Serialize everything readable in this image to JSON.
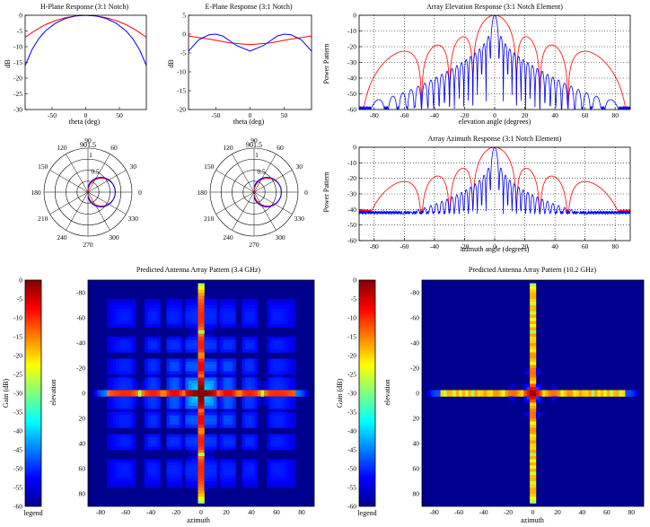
{
  "chart_data": [
    {
      "id": "hplane",
      "type": "line",
      "title": "H-Plane Response (3:1 Notch)",
      "xlabel": "theta (deg)",
      "ylabel": "dB",
      "xlim": [
        -90,
        90
      ],
      "ylim": [
        -30,
        0
      ],
      "xticks": [
        -50,
        0,
        50
      ],
      "yticks": [
        0,
        -5,
        -10,
        -15,
        -20,
        -25,
        -30
      ],
      "grid": false,
      "series": [
        {
          "color": "#ff0000",
          "x": [
            -90,
            -75,
            -60,
            -45,
            -30,
            -15,
            0,
            15,
            30,
            45,
            60,
            75,
            90
          ],
          "y": [
            -7,
            -4.8,
            -3,
            -1.7,
            -0.8,
            -0.2,
            0,
            -0.2,
            -0.8,
            -1.7,
            -3,
            -4.8,
            -7
          ]
        },
        {
          "color": "#0000ff",
          "x": [
            -90,
            -80,
            -70,
            -60,
            -45,
            -30,
            -15,
            0,
            15,
            30,
            45,
            60,
            70,
            80,
            90
          ],
          "y": [
            -16,
            -11,
            -7.5,
            -5,
            -2.5,
            -1,
            -0.2,
            0,
            -0.2,
            -1,
            -2.5,
            -5,
            -7.5,
            -11,
            -16
          ]
        }
      ]
    },
    {
      "id": "eplane",
      "type": "line",
      "title": "E-Plane Response (3:1 Notch)",
      "xlabel": "theta (deg)",
      "ylabel": "dB",
      "xlim": [
        -90,
        90
      ],
      "ylim": [
        -20,
        5
      ],
      "xticks": [
        -50,
        0,
        50
      ],
      "yticks": [
        5,
        0,
        -5,
        -10,
        -15,
        -20
      ],
      "grid": false,
      "series": [
        {
          "color": "#ff0000",
          "x": [
            -90,
            -60,
            -30,
            0,
            30,
            60,
            90
          ],
          "y": [
            -0.5,
            -1.3,
            -2.3,
            -2.8,
            -2.3,
            -1.3,
            -0.5
          ]
        },
        {
          "color": "#0000ff",
          "x": [
            -90,
            -75,
            -60,
            -50,
            -40,
            -20,
            0,
            20,
            40,
            50,
            60,
            75,
            90
          ],
          "y": [
            -4.5,
            -1.5,
            -0.2,
            0,
            -0.5,
            -3,
            -4.5,
            -3,
            -0.5,
            0,
            -0.2,
            -1.5,
            -4.5
          ]
        }
      ]
    },
    {
      "id": "elev",
      "type": "line",
      "title": "Array Elevation Response (3:1 Notch Element)",
      "xlabel": "elevation angle (degrees)",
      "ylabel": "Power Pattern",
      "xlim": [
        -90,
        90
      ],
      "ylim": [
        -60,
        0
      ],
      "xticks": [
        -80,
        -60,
        -40,
        -20,
        0,
        20,
        40,
        60,
        80
      ],
      "yticks": [
        0,
        -10,
        -20,
        -30,
        -40,
        -50,
        -60
      ],
      "grid": true,
      "series": [
        {
          "color": "#ff0000",
          "N": 8,
          "drop": -11,
          "floor": -60
        },
        {
          "color": "#0000ff",
          "N": 40,
          "drop": -38,
          "floor": -60
        }
      ]
    },
    {
      "id": "azim",
      "type": "line",
      "title": "Array Azimuth Response (3:1 Notch Element)",
      "xlabel": "azimuth angle (degrees)",
      "ylabel": "Power Pattern",
      "xlim": [
        -90,
        90
      ],
      "ylim": [
        -60,
        0
      ],
      "xticks": [
        -80,
        -60,
        -40,
        -20,
        0,
        20,
        40,
        60,
        80
      ],
      "yticks": [
        0,
        -10,
        -20,
        -30,
        -40,
        -50,
        -60
      ],
      "grid": true,
      "series": [
        {
          "color": "#ff0000",
          "N": 8,
          "drop": -9,
          "floor": -42
        },
        {
          "color": "#0000ff",
          "N": 40,
          "drop": -24,
          "floor": -43
        }
      ]
    },
    {
      "id": "heat1",
      "type": "heatmap",
      "title": "Predicted Antenna Array Pattern (3.4 GHz)",
      "xlabel": "azimuth",
      "ylabel": "elevation",
      "xlim": [
        -90,
        90
      ],
      "ylim": [
        -90,
        90
      ],
      "xticks": [
        -80,
        -60,
        -40,
        -20,
        0,
        20,
        40,
        60,
        80
      ],
      "yticks": [
        -80,
        -60,
        -40,
        -20,
        0,
        20,
        40,
        60,
        80
      ],
      "yreversed": true,
      "N": 8,
      "peak": [
        0,
        0
      ],
      "clim": [
        -60,
        0
      ]
    },
    {
      "id": "heat2",
      "type": "heatmap",
      "title": "Predicted Antenna Array Pattern (10.2 GHz)",
      "xlabel": "azimuth",
      "ylabel": "elevation",
      "xlim": [
        -90,
        90
      ],
      "ylim": [
        -90,
        90
      ],
      "xticks": [
        -80,
        -60,
        -40,
        -20,
        0,
        20,
        40,
        60,
        80
      ],
      "yticks": [
        -80,
        -60,
        -40,
        -20,
        0,
        20,
        40,
        60,
        80
      ],
      "yreversed": true,
      "N": 40,
      "peak": [
        0,
        0
      ],
      "clim": [
        -60,
        0
      ]
    }
  ],
  "polar_plots": [
    {
      "id": "polar1",
      "rmax_label": "901.5",
      "ring_labels": [
        "1",
        "0.5"
      ],
      "angle_labels": [
        "0",
        "30",
        "60",
        "90",
        "120",
        "150",
        "180",
        "210",
        "240",
        "270",
        "300",
        "330"
      ],
      "color": "#ff0000",
      "color2": "#0000ff"
    },
    {
      "id": "polar2",
      "rmax_label": "901.5",
      "ring_labels": [
        "1",
        "0.5"
      ],
      "angle_labels": [
        "0",
        "30",
        "60",
        "90",
        "120",
        "150",
        "180",
        "210",
        "240",
        "270",
        "300",
        "330"
      ],
      "color": "#ff0000",
      "color2": "#0000ff"
    }
  ],
  "colorbars": [
    {
      "id": "cb1",
      "label": "Gain (dB)",
      "caption": "legend",
      "ticks": [
        0,
        -5,
        -10,
        -15,
        -20,
        -25,
        -30,
        -35,
        -40,
        -45,
        -50,
        -55,
        -60
      ]
    },
    {
      "id": "cb2",
      "label": "Gain (dB)",
      "caption": "legend",
      "ticks": [
        0,
        -5,
        -10,
        -15,
        -20,
        -25,
        -30,
        -35,
        -40,
        -45,
        -50,
        -55,
        -60
      ]
    }
  ]
}
